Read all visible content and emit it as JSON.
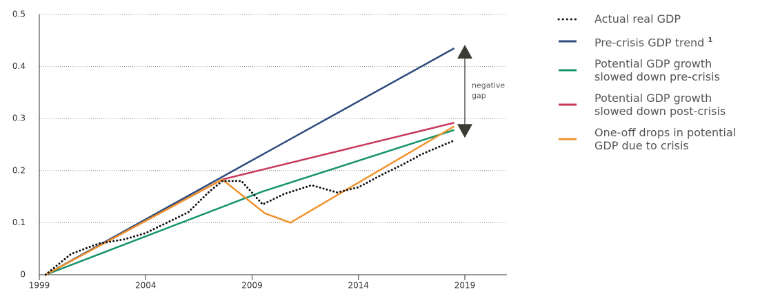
{
  "chart_data": {
    "type": "line",
    "annotation": "negative gap",
    "xlim": [
      1999,
      2021
    ],
    "xticks": [
      1999,
      2004,
      2009,
      2014,
      2019
    ],
    "ylim": [
      0,
      0.5
    ],
    "yticks": [
      0,
      0.1,
      0.2,
      0.3,
      0.4,
      0.5
    ],
    "grid": true,
    "series": [
      {
        "name": "Actual real GDP",
        "color": "#111111",
        "style": "dotted",
        "x": [
          1999.3,
          2000.5,
          2001.8,
          2003,
          2004,
          2005,
          2006,
          2007,
          2007.6,
          2008.5,
          2009.5,
          2010.5,
          2011.8,
          2013,
          2014,
          2015,
          2016,
          2017,
          2018.5
        ],
        "values": [
          0,
          0.04,
          0.06,
          0.068,
          0.08,
          0.1,
          0.12,
          0.16,
          0.18,
          0.18,
          0.135,
          0.155,
          0.172,
          0.158,
          0.168,
          0.19,
          0.21,
          0.232,
          0.258
        ]
      },
      {
        "name": "Pre-crisis GDP trend",
        "superscript": "1",
        "color": "#2e4a7d",
        "style": "solid",
        "x": [
          1999.3,
          2018.5
        ],
        "values": [
          0,
          0.435
        ]
      },
      {
        "name": "Potential GDP growth slowed down pre-crisis",
        "color": "#14946a",
        "style": "solid",
        "x": [
          1999.3,
          2009.5,
          2018.5
        ],
        "values": [
          0,
          0.16,
          0.278
        ]
      },
      {
        "name": "Potential GDP growth slowed down post-crisis",
        "color": "#c8375a",
        "style": "solid",
        "x": [
          1999.3,
          2007.6,
          2018.5
        ],
        "values": [
          0,
          0.183,
          0.292
        ]
      },
      {
        "name": "One-off drops in potential GDP due to crisis",
        "color": "#f0922b",
        "style": "solid",
        "x": [
          1999.3,
          2007.6,
          2009.6,
          2010.8,
          2018.5
        ],
        "values": [
          0,
          0.183,
          0.118,
          0.1,
          0.285
        ]
      }
    ]
  }
}
